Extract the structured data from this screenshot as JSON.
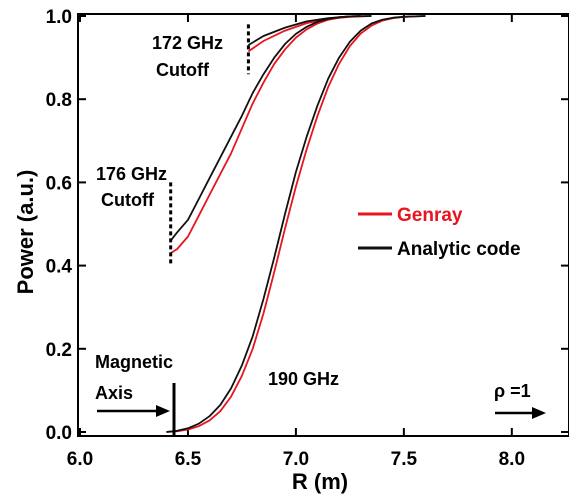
{
  "chart_data": {
    "type": "line",
    "xlabel": "R (m)",
    "ylabel": "Power (a.u.)",
    "xlim": [
      6.0,
      8.2
    ],
    "ylim": [
      0.0,
      1.0
    ],
    "x_ticks": [
      "6.0",
      "6.5",
      "7.0",
      "7.5",
      "8.0"
    ],
    "y_ticks": [
      "0.0",
      "0.2",
      "0.4",
      "0.6",
      "0.8",
      "1.0"
    ],
    "legend": {
      "placement": "right",
      "entries": [
        {
          "label": "Genray",
          "color": "#e8141e"
        },
        {
          "label": "Analytic code",
          "color": "#111111"
        }
      ]
    },
    "series": [
      {
        "name": "Genray",
        "color": "#e8141e",
        "group": "172 GHz",
        "x": [
          6.78,
          6.85,
          6.95,
          7.05,
          7.15,
          7.25,
          7.35
        ],
        "y": [
          0.915,
          0.94,
          0.965,
          0.983,
          0.993,
          0.998,
          1.0
        ]
      },
      {
        "name": "Analytic code",
        "color": "#111111",
        "group": "172 GHz",
        "x": [
          6.78,
          6.85,
          6.95,
          7.05,
          7.15,
          7.25,
          7.35
        ],
        "y": [
          0.93,
          0.952,
          0.972,
          0.987,
          0.995,
          0.999,
          1.0
        ]
      },
      {
        "name": "Genray",
        "color": "#e8141e",
        "group": "176 GHz",
        "x": [
          6.42,
          6.45,
          6.5,
          6.55,
          6.6,
          6.65,
          6.7,
          6.75,
          6.8,
          6.85,
          6.9,
          6.95,
          7.0,
          7.05,
          7.1,
          7.15,
          7.2,
          7.25,
          7.3
        ],
        "y": [
          0.43,
          0.44,
          0.47,
          0.52,
          0.57,
          0.62,
          0.67,
          0.73,
          0.79,
          0.84,
          0.885,
          0.92,
          0.948,
          0.968,
          0.982,
          0.991,
          0.996,
          0.999,
          1.0
        ]
      },
      {
        "name": "Analytic code",
        "color": "#111111",
        "group": "176 GHz",
        "x": [
          6.42,
          6.45,
          6.5,
          6.55,
          6.6,
          6.65,
          6.7,
          6.75,
          6.8,
          6.85,
          6.9,
          6.95,
          7.0,
          7.05,
          7.1,
          7.15,
          7.2,
          7.25,
          7.3
        ],
        "y": [
          0.46,
          0.48,
          0.51,
          0.56,
          0.61,
          0.66,
          0.71,
          0.76,
          0.815,
          0.86,
          0.9,
          0.933,
          0.957,
          0.974,
          0.986,
          0.993,
          0.997,
          0.999,
          1.0
        ]
      },
      {
        "name": "Genray",
        "color": "#e8141e",
        "group": "190 GHz",
        "x": [
          6.4,
          6.45,
          6.5,
          6.55,
          6.6,
          6.65,
          6.7,
          6.75,
          6.8,
          6.85,
          6.9,
          6.95,
          7.0,
          7.05,
          7.1,
          7.15,
          7.2,
          7.25,
          7.3,
          7.35,
          7.4,
          7.45,
          7.5,
          7.55,
          7.6
        ],
        "y": [
          0.0,
          0.002,
          0.006,
          0.014,
          0.028,
          0.05,
          0.085,
          0.135,
          0.2,
          0.285,
          0.385,
          0.49,
          0.59,
          0.68,
          0.76,
          0.83,
          0.885,
          0.928,
          0.958,
          0.977,
          0.989,
          0.995,
          0.998,
          0.999,
          1.0
        ]
      },
      {
        "name": "Analytic code",
        "color": "#111111",
        "group": "190 GHz",
        "x": [
          6.4,
          6.45,
          6.5,
          6.55,
          6.6,
          6.65,
          6.7,
          6.75,
          6.8,
          6.85,
          6.9,
          6.95,
          7.0,
          7.05,
          7.1,
          7.15,
          7.2,
          7.25,
          7.3,
          7.35,
          7.4,
          7.45,
          7.5,
          7.55,
          7.6
        ],
        "y": [
          0.0,
          0.003,
          0.009,
          0.02,
          0.038,
          0.065,
          0.105,
          0.16,
          0.23,
          0.32,
          0.42,
          0.525,
          0.625,
          0.71,
          0.785,
          0.85,
          0.9,
          0.938,
          0.965,
          0.982,
          0.991,
          0.996,
          0.998,
          0.999,
          1.0
        ]
      }
    ],
    "annotations": [
      {
        "text": "172 GHz",
        "line2": "Cutoff",
        "cutoff_x": 6.78,
        "cutoff_y": [
          0.86,
          0.98
        ]
      },
      {
        "text": "176 GHz",
        "line2": "Cutoff",
        "cutoff_x": 6.42,
        "cutoff_y": [
          0.4,
          0.6
        ]
      },
      {
        "text": "190 GHz"
      },
      {
        "text": "Magnetic",
        "line2": "Axis",
        "axis_x": 6.4
      },
      {
        "text": "ρ =1"
      }
    ]
  }
}
